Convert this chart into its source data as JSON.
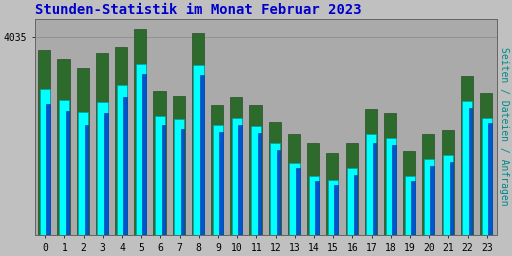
{
  "title": "Stunden-Statistik im Monat Februar 2023",
  "ylabel": "Seiten / Dateien / Anfragen",
  "categories": [
    0,
    1,
    2,
    3,
    4,
    5,
    6,
    7,
    8,
    9,
    10,
    11,
    12,
    13,
    14,
    15,
    16,
    17,
    18,
    19,
    20,
    21,
    22,
    23
  ],
  "seiten": [
    3910,
    3885,
    3855,
    3880,
    3920,
    3970,
    3845,
    3838,
    3968,
    3825,
    3842,
    3822,
    3782,
    3732,
    3702,
    3692,
    3722,
    3802,
    3792,
    3702,
    3742,
    3752,
    3882,
    3842
  ],
  "dateien": [
    3875,
    3858,
    3825,
    3852,
    3892,
    3948,
    3825,
    3815,
    3945,
    3808,
    3825,
    3805,
    3765,
    3720,
    3690,
    3680,
    3705,
    3780,
    3775,
    3690,
    3725,
    3735,
    3865,
    3830
  ],
  "anfragen": [
    4005,
    3982,
    3962,
    3998,
    4012,
    4055,
    3905,
    3895,
    4045,
    3872,
    3892,
    3872,
    3832,
    3802,
    3780,
    3758,
    3782,
    3862,
    3852,
    3762,
    3802,
    3812,
    3942,
    3902
  ],
  "bar_color_seiten": "#00FFFF",
  "bar_color_dateien": "#0055CC",
  "bar_color_anfragen": "#2D6B2D",
  "bar_edge_color_seiten": "#0099AA",
  "bar_edge_color_dateien": "#0033AA",
  "bar_edge_color_anfragen": "#1A3D1A",
  "background_color": "#C0C0C0",
  "plot_bg_color": "#AAAAAA",
  "title_color": "#0000CC",
  "ylabel_color": "#008888",
  "tick_color": "#000000",
  "ytick_label": "4035",
  "ytick_value": 4035,
  "ylim_min": 3560,
  "ylim_max": 4080,
  "title_fontsize": 10,
  "ylabel_fontsize": 7,
  "tick_fontsize": 7
}
